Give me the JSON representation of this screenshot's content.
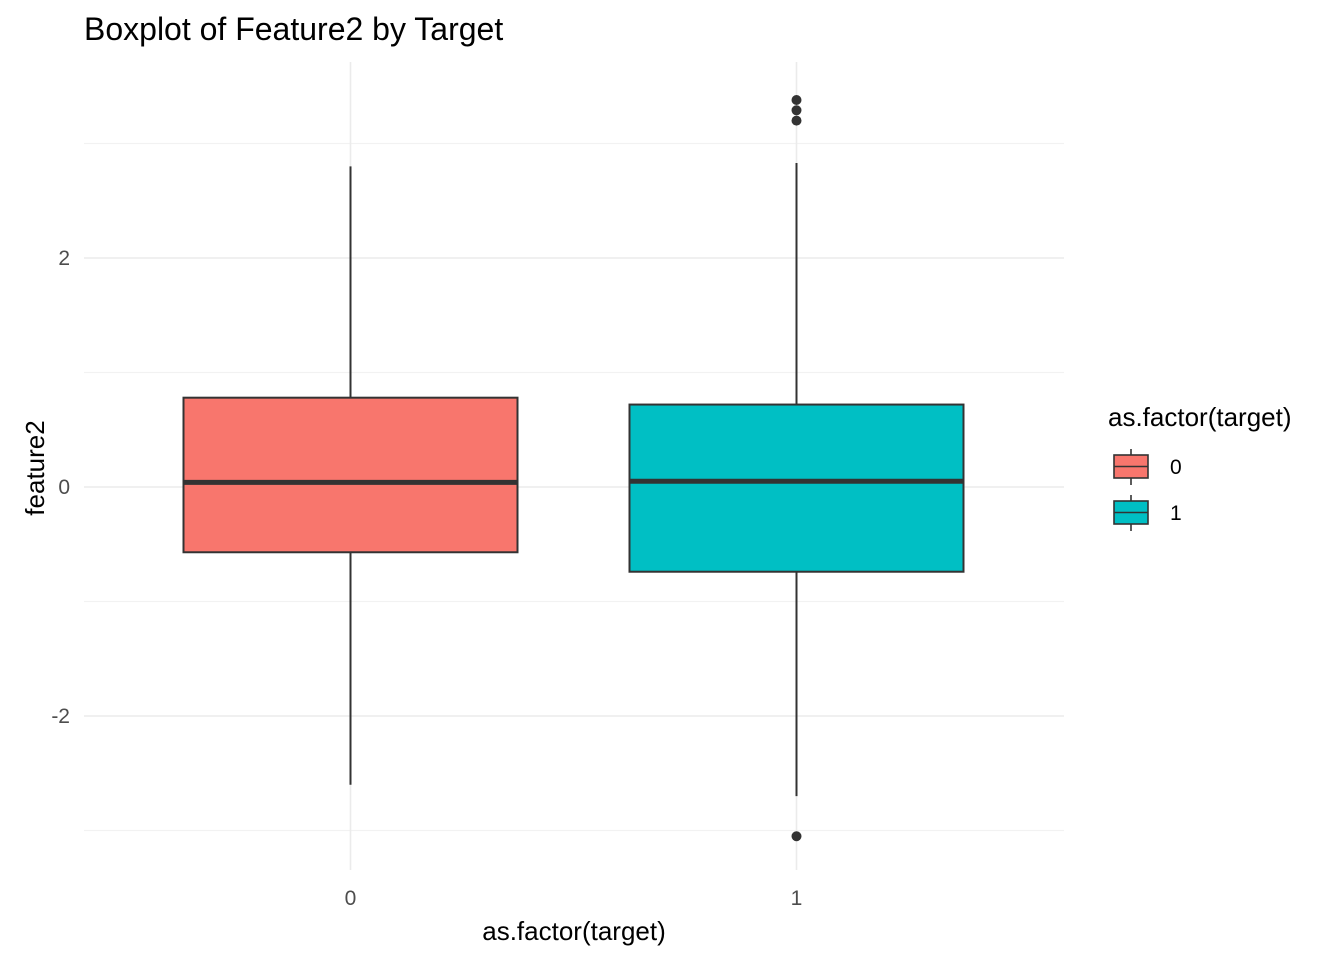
{
  "chart_data": {
    "type": "boxplot",
    "title": "Boxplot of Feature2 by Target",
    "xlabel": "as.factor(target)",
    "ylabel": "feature2",
    "categories": [
      "0",
      "1"
    ],
    "ylim": [
      -3.15,
      3.72
    ],
    "y_ticks": [
      -2,
      0,
      2
    ],
    "y_tick_labels": [
      "-2",
      "0",
      "2"
    ],
    "grid": true,
    "legend": {
      "title": "as.factor(target)",
      "position": "right",
      "entries": [
        "0",
        "1"
      ]
    },
    "colors": {
      "0": "#F8766D",
      "1": "#00BFC4",
      "outline": "#333333"
    },
    "boxes": [
      {
        "category": "0",
        "whisker_low": -2.6,
        "q1": -0.57,
        "median": 0.04,
        "q3": 0.78,
        "whisker_high": 2.8,
        "outliers": []
      },
      {
        "category": "1",
        "whisker_low": -2.7,
        "q1": -0.74,
        "median": 0.05,
        "q3": 0.72,
        "whisker_high": 2.83,
        "outliers": [
          3.38,
          3.29,
          3.2,
          -3.05
        ]
      }
    ]
  }
}
